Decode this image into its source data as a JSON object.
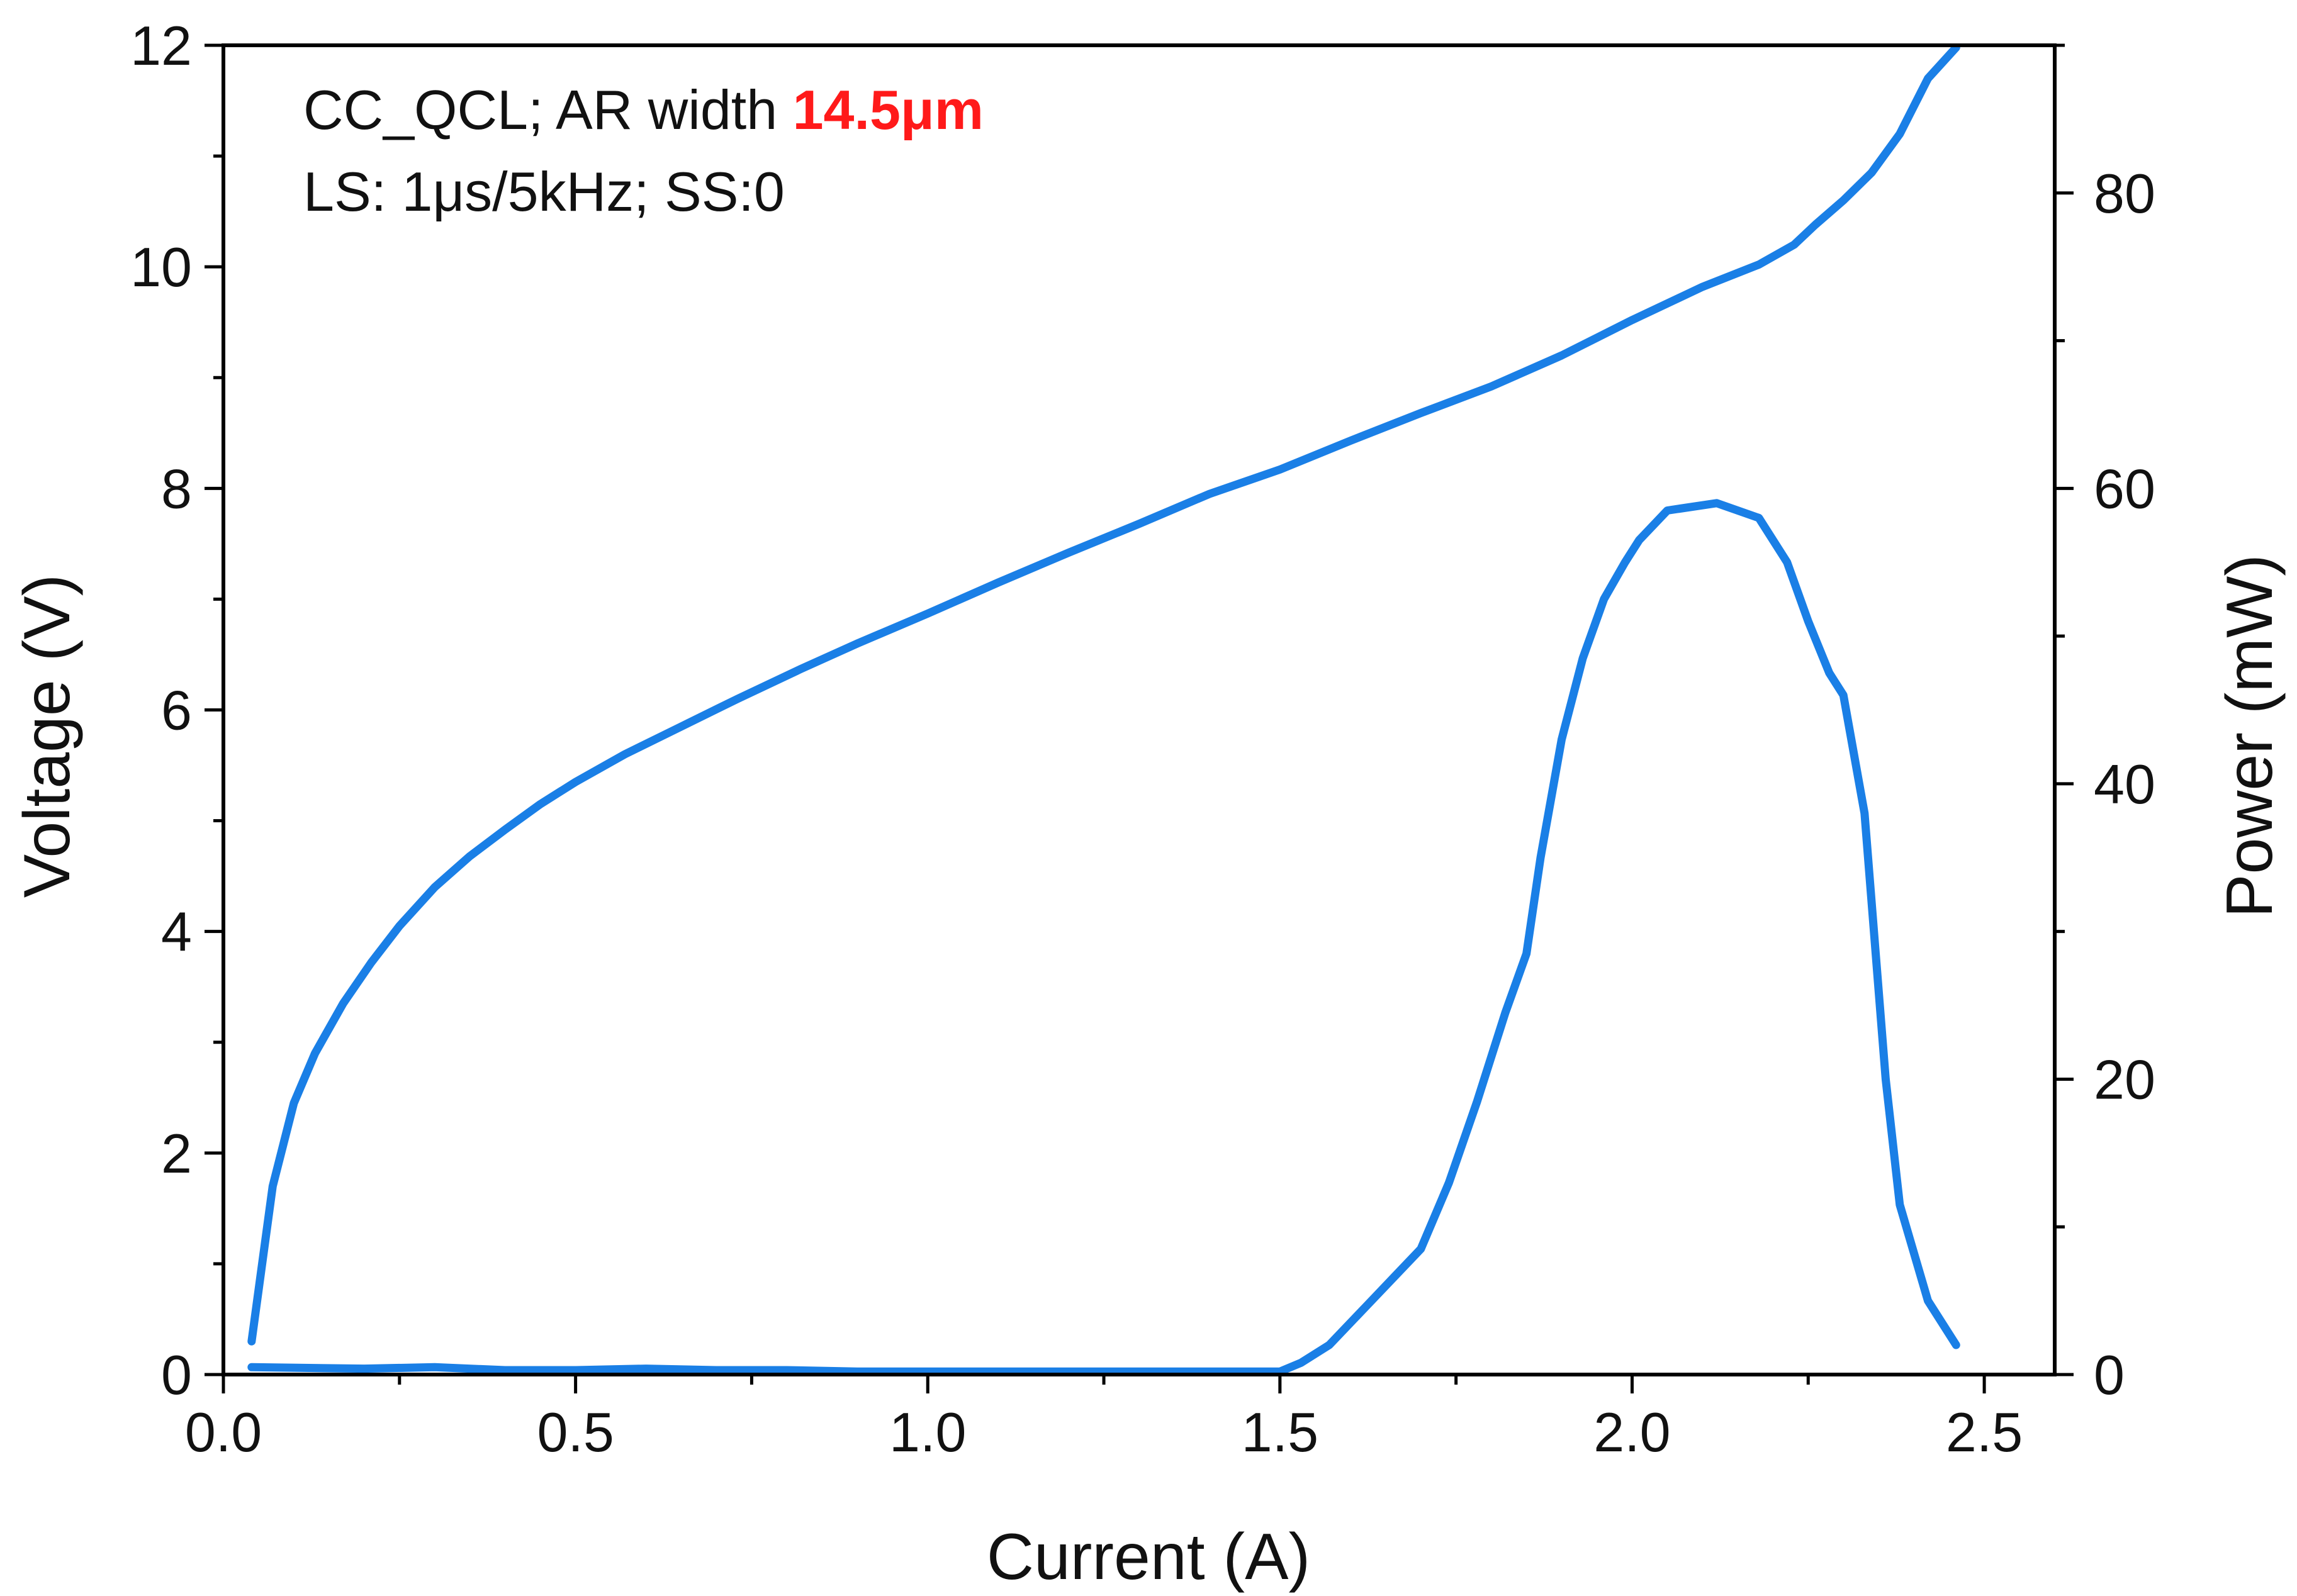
{
  "chart_data": {
    "type": "line",
    "xlabel": "Current (A)",
    "ylabel": "Voltage (V)",
    "y2label": "Power (mW)",
    "xlim": [
      0.0,
      2.6
    ],
    "ylim": [
      0,
      12
    ],
    "y2lim": [
      0,
      90
    ],
    "x_ticks": [
      "0.0",
      "0.5",
      "1.0",
      "1.5",
      "2.0",
      "2.5"
    ],
    "y_ticks": [
      "0",
      "2",
      "4",
      "6",
      "8",
      "10",
      "12"
    ],
    "y2_ticks": [
      "0",
      "20",
      "40",
      "60",
      "80"
    ],
    "line_color": "#1a7fe6",
    "highlight_color": "#ff1a1a",
    "annotation": {
      "line1_text": "CC_QCL; AR width ",
      "line1_highlight": "14.5μm",
      "line2": "LS: 1μs/5kHz; SS:0"
    },
    "series": [
      {
        "name": "Voltage",
        "axis": "left",
        "x": [
          0.04,
          0.07,
          0.1,
          0.13,
          0.17,
          0.21,
          0.25,
          0.3,
          0.35,
          0.4,
          0.45,
          0.5,
          0.57,
          0.65,
          0.73,
          0.82,
          0.9,
          1.0,
          1.1,
          1.2,
          1.3,
          1.4,
          1.5,
          1.6,
          1.7,
          1.8,
          1.9,
          2.0,
          2.1,
          2.18,
          2.23,
          2.26,
          2.3,
          2.34,
          2.38,
          2.42,
          2.46
        ],
        "values": [
          0.3,
          1.7,
          2.45,
          2.9,
          3.35,
          3.72,
          4.05,
          4.4,
          4.68,
          4.92,
          5.15,
          5.35,
          5.6,
          5.85,
          6.1,
          6.37,
          6.6,
          6.87,
          7.15,
          7.42,
          7.68,
          7.95,
          8.17,
          8.43,
          8.68,
          8.92,
          9.2,
          9.52,
          9.82,
          10.02,
          10.2,
          10.38,
          10.6,
          10.85,
          11.2,
          11.7,
          11.98
        ]
      },
      {
        "name": "Power",
        "axis": "right",
        "x": [
          0.04,
          0.2,
          0.3,
          0.4,
          0.5,
          0.6,
          0.7,
          0.8,
          0.9,
          1.0,
          1.2,
          1.4,
          1.5,
          1.53,
          1.57,
          1.62,
          1.66,
          1.7,
          1.74,
          1.78,
          1.82,
          1.85,
          1.87,
          1.9,
          1.93,
          1.96,
          1.99,
          2.01,
          2.05,
          2.12,
          2.18,
          2.22,
          2.25,
          2.28,
          2.3,
          2.33,
          2.36,
          2.38,
          2.42,
          2.46
        ],
        "values": [
          0.5,
          0.4,
          0.5,
          0.3,
          0.3,
          0.4,
          0.3,
          0.3,
          0.2,
          0.2,
          0.2,
          0.2,
          0.2,
          0.8,
          2.0,
          4.5,
          6.5,
          8.5,
          13.0,
          18.5,
          24.5,
          28.5,
          35.0,
          43.0,
          48.5,
          52.5,
          55.0,
          56.5,
          58.5,
          59.0,
          58.0,
          55.0,
          51.0,
          47.5,
          46.0,
          38.0,
          20.0,
          11.5,
          5.0,
          2.0
        ]
      }
    ]
  }
}
